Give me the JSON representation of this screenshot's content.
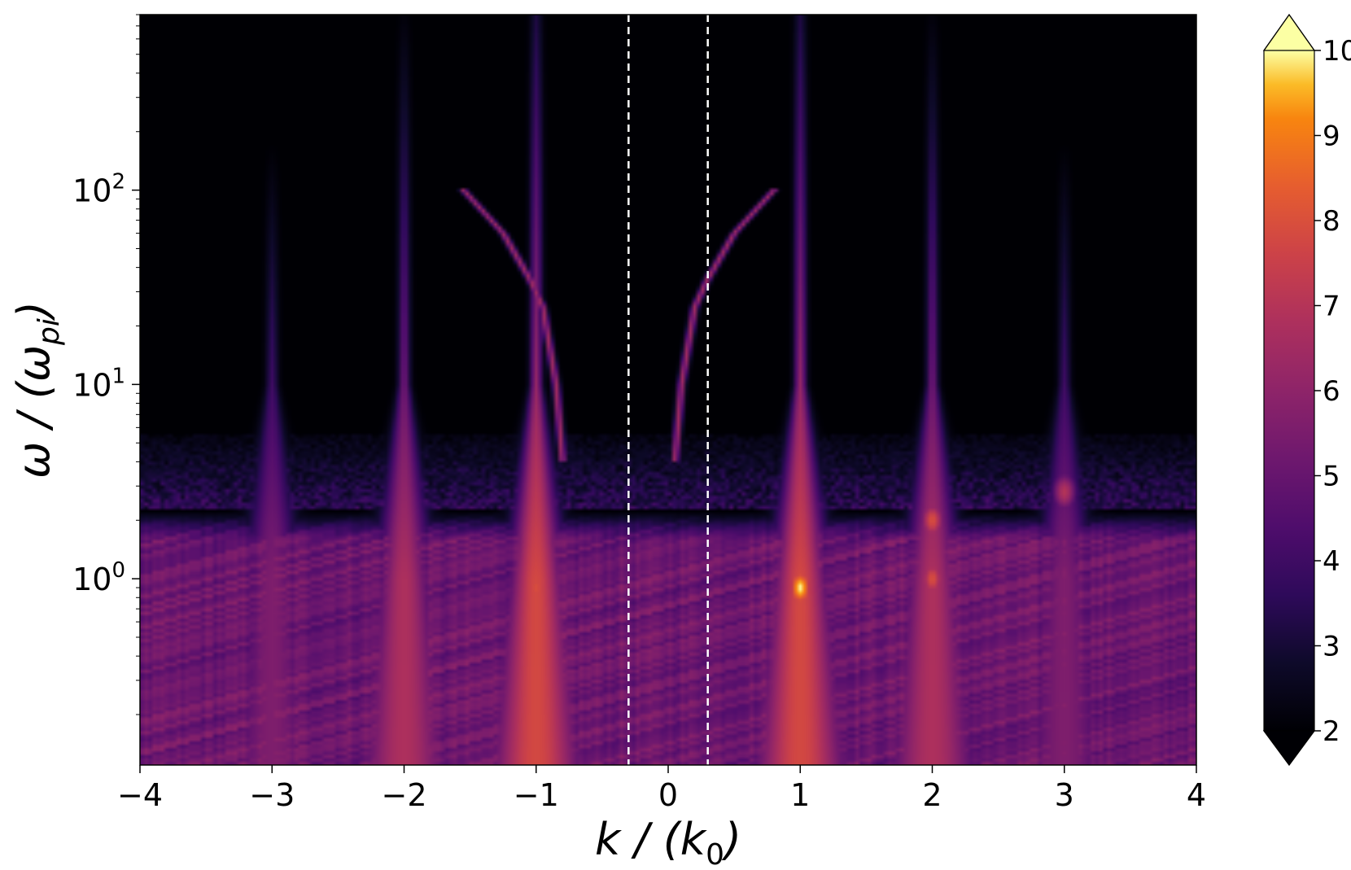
{
  "chart_data": {
    "type": "heatmap",
    "xlabel": "k / (k_0)",
    "ylabel": "ω / (ω_pi)",
    "xlim": [
      -4,
      4
    ],
    "ylim": [
      0.11,
      800
    ],
    "y_scale": "log",
    "x_ticks": [
      -4,
      -3,
      -2,
      -1,
      0,
      1,
      2,
      3,
      4
    ],
    "x_tick_labels": [
      "−4",
      "−3",
      "−2",
      "−1",
      "0",
      "1",
      "2",
      "3",
      "4"
    ],
    "y_ticks": [
      1,
      10,
      100
    ],
    "y_tick_labels": [
      {
        "base": "10",
        "exp": "0"
      },
      {
        "base": "10",
        "exp": "1"
      },
      {
        "base": "10",
        "exp": "2"
      }
    ],
    "colormap": "inferno",
    "colorbar": {
      "range": [
        2,
        10
      ],
      "ticks": [
        2,
        3,
        4,
        5,
        6,
        7,
        8,
        9,
        10
      ],
      "tick_labels": [
        "2",
        "3",
        "4",
        "5",
        "6",
        "7",
        "8",
        "9",
        "10"
      ],
      "extend": "both"
    },
    "reference_lines": [
      {
        "x": -0.3,
        "style": "dashed",
        "color": "#ffffff"
      },
      {
        "x": 0.3,
        "style": "dashed",
        "color": "#ffffff"
      }
    ],
    "features": {
      "harmonic_ridges_k": [
        -3,
        -2,
        -1,
        1,
        2,
        3
      ],
      "peak": {
        "k": 1,
        "omega": 0.9,
        "value": 10
      },
      "secondary_peaks": [
        {
          "k": 2,
          "omega": 2,
          "value": 8
        },
        {
          "k": 3,
          "omega": 2.8,
          "value": 7
        },
        {
          "k": 2,
          "omega": 1,
          "value": 8
        },
        {
          "k": -1,
          "omega": 0.9,
          "value": 8
        }
      ],
      "dispersion_branch": {
        "description": "",
        "points": [
          [
            0.05,
            4
          ],
          [
            0.1,
            10
          ],
          [
            0.2,
            25
          ],
          [
            0.3,
            35
          ],
          [
            0.5,
            60
          ],
          [
            0.8,
            100
          ]
        ]
      }
    }
  }
}
